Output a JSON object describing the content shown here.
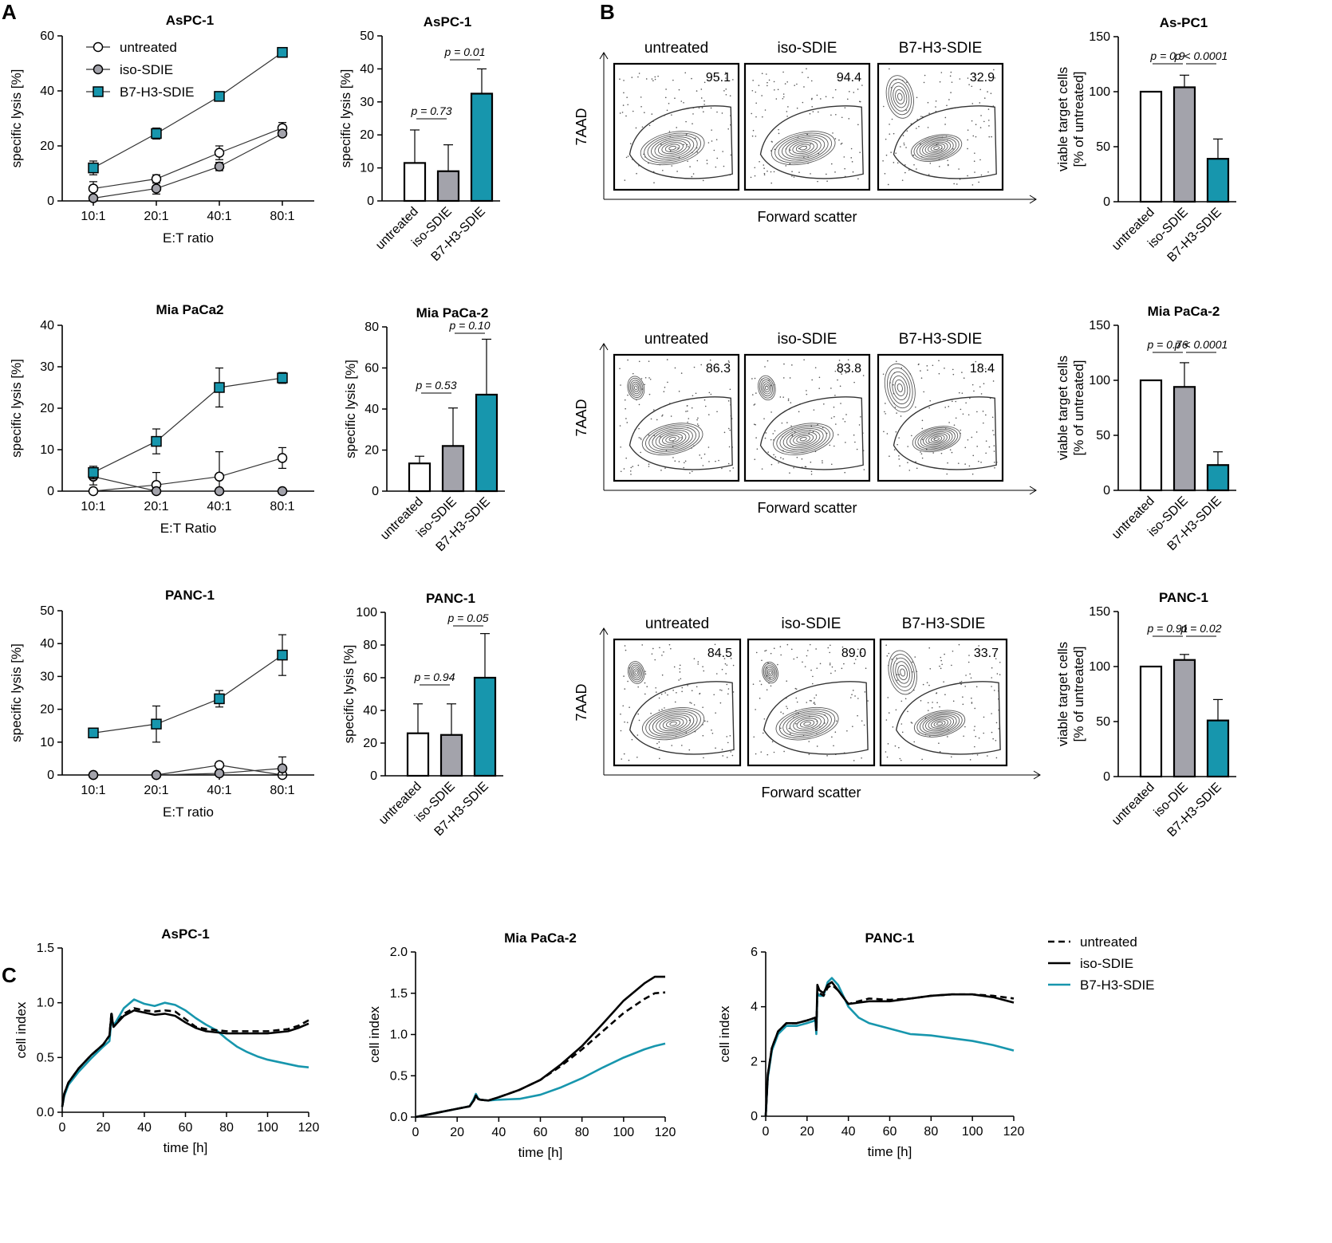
{
  "colors": {
    "teal": "#1796ad",
    "gray": "#a3a3ab",
    "white": "#ffffff",
    "black": "#000000"
  },
  "panels": {
    "A": "A",
    "B": "B",
    "C": "C"
  },
  "chart_data": [
    {
      "id": "A-line-aspc1",
      "type": "line",
      "title": "AsPC-1",
      "xlabel": "E:T ratio",
      "ylabel": "specific lysis [%]",
      "categories": [
        "10:1",
        "20:1",
        "40:1",
        "80:1"
      ],
      "ylim": [
        0,
        60
      ],
      "yticks": [
        0,
        20,
        40,
        60
      ],
      "legend": [
        "untreated",
        "iso-SDIE",
        "B7-H3-SDIE"
      ],
      "series": [
        {
          "name": "untreated",
          "marker": "circle-open",
          "values": [
            4.5,
            8,
            17.5,
            26.5
          ],
          "err": [
            2.5,
            1.5,
            2.5,
            2
          ]
        },
        {
          "name": "iso-SDIE",
          "marker": "circle-gray",
          "values": [
            1,
            4.5,
            12.5,
            24.5
          ],
          "err": [
            1,
            2,
            1.5,
            1
          ]
        },
        {
          "name": "B7-H3-SDIE",
          "marker": "square-teal",
          "values": [
            12,
            24.5,
            38,
            54
          ],
          "err": [
            2.5,
            2,
            1,
            1
          ]
        }
      ]
    },
    {
      "id": "A-line-miapaca2",
      "type": "line",
      "title": "Mia PaCa2",
      "xlabel": "E:T Ratio",
      "ylabel": "specific lysis [%]",
      "categories": [
        "10:1",
        "20:1",
        "40:1",
        "80:1"
      ],
      "ylim": [
        0,
        40
      ],
      "yticks": [
        0,
        10,
        20,
        30,
        40
      ],
      "series": [
        {
          "name": "untreated",
          "marker": "circle-open",
          "values": [
            0,
            1.5,
            3.5,
            8
          ],
          "err": [
            0,
            3,
            6,
            2.5
          ]
        },
        {
          "name": "iso-SDIE",
          "marker": "circle-gray",
          "values": [
            3.5,
            0,
            0,
            0
          ],
          "err": [
            2,
            0,
            0,
            0
          ]
        },
        {
          "name": "B7-H3-SDIE",
          "marker": "square-teal",
          "values": [
            4.5,
            12,
            25,
            27.3
          ],
          "err": [
            1.5,
            3,
            4.7,
            1.3
          ]
        }
      ]
    },
    {
      "id": "A-line-panc1",
      "type": "line",
      "title": "PANC-1",
      "xlabel": "E:T ratio",
      "ylabel": "specific lysis [%]",
      "categories": [
        "10:1",
        "20:1",
        "40:1",
        "80:1"
      ],
      "ylim": [
        0,
        50
      ],
      "yticks": [
        0,
        10,
        20,
        30,
        40,
        50
      ],
      "series": [
        {
          "name": "untreated",
          "marker": "circle-open",
          "values": [
            0,
            0,
            3,
            0
          ],
          "err": [
            0,
            0,
            0.5,
            0
          ]
        },
        {
          "name": "iso-SDIE",
          "marker": "circle-gray",
          "values": [
            0,
            0,
            0.5,
            2
          ],
          "err": [
            0,
            0,
            0.3,
            3.5
          ]
        },
        {
          "name": "B7-H3-SDIE",
          "marker": "square-teal",
          "values": [
            12.8,
            15.5,
            23.2,
            36.5
          ],
          "err": [
            0.5,
            5.5,
            2.5,
            6.2
          ]
        }
      ]
    },
    {
      "id": "A-bar-aspc1",
      "type": "bar",
      "title": "AsPC-1",
      "ylabel": "specific lysis [%]",
      "categories": [
        "untreated",
        "iso-SDIE",
        "B7-H3-SDIE"
      ],
      "values": [
        11.5,
        9,
        32.5
      ],
      "err": [
        10,
        8,
        7.5
      ],
      "ylim": [
        0,
        50
      ],
      "yticks": [
        0,
        10,
        20,
        30,
        40,
        50
      ],
      "pvalues": [
        {
          "label": "p = 0.73",
          "from": 0,
          "to": 1
        },
        {
          "label": "p = 0.01",
          "from": 1,
          "to": 2
        }
      ]
    },
    {
      "id": "A-bar-miapaca2",
      "type": "bar",
      "title": "Mia PaCa-2",
      "ylabel": "specific lysis [%]",
      "categories": [
        "untreated",
        "iso-SDIE",
        "B7-H3-SDIE"
      ],
      "values": [
        13.5,
        22,
        47
      ],
      "err": [
        3.5,
        18.5,
        27
      ],
      "ylim": [
        0,
        80
      ],
      "yticks": [
        0,
        20,
        40,
        60,
        80
      ],
      "pvalues": [
        {
          "label": "p = 0.53",
          "from": 0,
          "to": 1
        },
        {
          "label": "p = 0.10",
          "from": 1,
          "to": 2
        }
      ]
    },
    {
      "id": "A-bar-panc1",
      "type": "bar",
      "title": "PANC-1",
      "ylabel": "specific lysis [%]",
      "categories": [
        "untreated",
        "iso-SDIE",
        "B7-H3-SDIE"
      ],
      "values": [
        26,
        25,
        60
      ],
      "err": [
        18,
        19,
        27
      ],
      "ylim": [
        0,
        100
      ],
      "yticks": [
        0,
        20,
        40,
        60,
        80,
        100
      ],
      "pvalues": [
        {
          "label": "p = 0.94",
          "from": 0,
          "to": 1
        },
        {
          "label": "p = 0.05",
          "from": 1,
          "to": 2
        }
      ]
    },
    {
      "id": "B-flow-aspc1",
      "type": "contour",
      "xlabel": "Forward scatter",
      "ylabel": "7AAD",
      "conditions": [
        "untreated",
        "iso-SDIE",
        "B7-H3-SDIE"
      ],
      "percent_in_gate": [
        "95.1",
        "94.4",
        "32.9"
      ]
    },
    {
      "id": "B-flow-miapaca2",
      "type": "contour",
      "xlabel": "Forward scatter",
      "ylabel": "7AAD",
      "conditions": [
        "untreated",
        "iso-SDIE",
        "B7-H3-SDIE"
      ],
      "percent_in_gate": [
        "86.3",
        "83.8",
        "18.4"
      ]
    },
    {
      "id": "B-flow-panc1",
      "type": "contour",
      "xlabel": "Forward scatter",
      "ylabel": "7AAD",
      "conditions": [
        "untreated",
        "iso-SDIE",
        "B7-H3-SDIE"
      ],
      "percent_in_gate": [
        "84.5",
        "89.0",
        "33.7"
      ]
    },
    {
      "id": "B-bar-aspc1",
      "type": "bar",
      "title": "As-PC1",
      "ylabel": "viable target cells",
      "ylabel2": "[% of untreated]",
      "categories": [
        "untreated",
        "iso-SDIE",
        "B7-H3-SDIE"
      ],
      "values": [
        100,
        104,
        39
      ],
      "err": [
        0,
        11,
        18
      ],
      "ylim": [
        0,
        150
      ],
      "yticks": [
        0,
        50,
        100,
        150
      ],
      "pvalues": [
        {
          "label": "p = 0.9",
          "from": 0,
          "to": 1
        },
        {
          "label": "p < 0.0001",
          "from": 1,
          "to": 2
        }
      ]
    },
    {
      "id": "B-bar-miapaca2",
      "type": "bar",
      "title": "Mia PaCa-2",
      "ylabel": "viable target cells",
      "ylabel2": "[% of untreated]",
      "categories": [
        "untreated",
        "iso-SDIE",
        "B7-H3-SDIE"
      ],
      "values": [
        100,
        94,
        23
      ],
      "err": [
        0,
        22,
        12
      ],
      "ylim": [
        0,
        150
      ],
      "yticks": [
        0,
        50,
        100,
        150
      ],
      "pvalues": [
        {
          "label": "p = 0.76",
          "from": 0,
          "to": 1
        },
        {
          "label": "p < 0.0001",
          "from": 1,
          "to": 2
        }
      ]
    },
    {
      "id": "B-bar-panc1",
      "type": "bar",
      "title": "PANC-1",
      "ylabel": "viable target cells",
      "ylabel2": "[% of untreated]",
      "categories": [
        "untreated",
        "iso-DIE",
        "B7-H3-SDIE"
      ],
      "values": [
        100,
        106,
        51
      ],
      "err": [
        0,
        5,
        19
      ],
      "ylim": [
        0,
        150
      ],
      "yticks": [
        0,
        50,
        100,
        150
      ],
      "pvalues": [
        {
          "label": "p = 0.91",
          "from": 0,
          "to": 1
        },
        {
          "label": "p = 0.02",
          "from": 1,
          "to": 2
        }
      ]
    },
    {
      "id": "C-ts-aspc1",
      "type": "line",
      "title": "AsPC-1",
      "xlabel": "time [h]",
      "ylabel": "cell index",
      "xlim": [
        0,
        120
      ],
      "xticks": [
        0,
        20,
        40,
        60,
        80,
        100,
        120
      ],
      "ylim": [
        0,
        1.5
      ],
      "yticks": [
        "0.0",
        "0.5",
        "1.0",
        "1.5"
      ],
      "series": [
        {
          "name": "untreated",
          "x": [
            0,
            1,
            3,
            8,
            14,
            20,
            23,
            24,
            24.5,
            25,
            26,
            30,
            35,
            40,
            45,
            50,
            55,
            60,
            65,
            70,
            75,
            80,
            90,
            100,
            110,
            115,
            120
          ],
          "y": [
            0.05,
            0.17,
            0.27,
            0.4,
            0.52,
            0.62,
            0.7,
            0.92,
            0.83,
            0.78,
            0.8,
            0.9,
            0.95,
            0.93,
            0.92,
            0.93,
            0.92,
            0.85,
            0.78,
            0.76,
            0.75,
            0.74,
            0.74,
            0.74,
            0.76,
            0.79,
            0.84
          ]
        },
        {
          "name": "iso-SDIE",
          "x": [
            0,
            1,
            3,
            8,
            14,
            20,
            23,
            24,
            24.5,
            25,
            26,
            30,
            35,
            40,
            45,
            50,
            55,
            60,
            65,
            70,
            75,
            80,
            90,
            100,
            110,
            115,
            120
          ],
          "y": [
            0.05,
            0.17,
            0.27,
            0.4,
            0.52,
            0.62,
            0.7,
            0.9,
            0.83,
            0.78,
            0.8,
            0.88,
            0.93,
            0.91,
            0.89,
            0.9,
            0.88,
            0.82,
            0.77,
            0.74,
            0.73,
            0.72,
            0.72,
            0.72,
            0.74,
            0.77,
            0.81
          ]
        },
        {
          "name": "B7-H3-SDIE",
          "x": [
            0,
            1,
            3,
            8,
            14,
            20,
            23,
            24,
            25,
            26,
            30,
            35,
            40,
            45,
            50,
            55,
            60,
            65,
            70,
            75,
            80,
            85,
            90,
            95,
            100,
            110,
            115,
            120
          ],
          "y": [
            0.05,
            0.15,
            0.25,
            0.37,
            0.49,
            0.6,
            0.65,
            0.85,
            0.8,
            0.82,
            0.95,
            1.03,
            0.99,
            0.97,
            1.0,
            0.98,
            0.93,
            0.86,
            0.8,
            0.75,
            0.67,
            0.6,
            0.55,
            0.51,
            0.48,
            0.44,
            0.42,
            0.41
          ]
        }
      ]
    },
    {
      "id": "C-ts-miapaca2",
      "type": "line",
      "title": "Mia PaCa-2",
      "xlabel": "time [h]",
      "ylabel": "cell index",
      "xlim": [
        0,
        120
      ],
      "xticks": [
        0,
        20,
        40,
        60,
        80,
        100,
        120
      ],
      "ylim": [
        0,
        2.0
      ],
      "yticks": [
        "0.0",
        "0.5",
        "1.0",
        "1.5",
        "2.0"
      ],
      "series": [
        {
          "name": "untreated",
          "x": [
            0,
            10,
            20,
            26,
            28,
            29,
            30,
            31,
            35,
            40,
            50,
            60,
            70,
            80,
            90,
            100,
            110,
            115,
            120
          ],
          "y": [
            0,
            0.05,
            0.1,
            0.13,
            0.2,
            0.26,
            0.22,
            0.21,
            0.2,
            0.24,
            0.33,
            0.45,
            0.62,
            0.82,
            1.04,
            1.26,
            1.43,
            1.5,
            1.51
          ]
        },
        {
          "name": "iso-SDIE",
          "x": [
            0,
            10,
            20,
            26,
            28,
            29,
            30,
            31,
            35,
            40,
            50,
            60,
            70,
            80,
            90,
            100,
            110,
            115,
            120
          ],
          "y": [
            0,
            0.05,
            0.1,
            0.13,
            0.2,
            0.26,
            0.22,
            0.21,
            0.2,
            0.24,
            0.33,
            0.45,
            0.64,
            0.86,
            1.13,
            1.41,
            1.62,
            1.7,
            1.7
          ]
        },
        {
          "name": "B7-H3-SDIE",
          "x": [
            0,
            10,
            20,
            26,
            28,
            29,
            30,
            31,
            35,
            40,
            50,
            60,
            70,
            80,
            90,
            100,
            110,
            115,
            120
          ],
          "y": [
            0,
            0.05,
            0.1,
            0.13,
            0.22,
            0.28,
            0.23,
            0.21,
            0.2,
            0.21,
            0.22,
            0.27,
            0.36,
            0.47,
            0.6,
            0.72,
            0.82,
            0.86,
            0.89
          ]
        }
      ]
    },
    {
      "id": "C-ts-panc1",
      "type": "line",
      "title": "PANC-1",
      "xlabel": "time [h]",
      "ylabel": "cell index",
      "xlim": [
        0,
        120
      ],
      "xticks": [
        0,
        20,
        40,
        60,
        80,
        100,
        120
      ],
      "ylim": [
        0,
        6
      ],
      "yticks": [
        "0",
        "2",
        "4",
        "6"
      ],
      "series": [
        {
          "name": "untreated",
          "x": [
            0,
            1,
            3,
            6,
            10,
            15,
            20,
            24,
            24.5,
            25,
            26,
            28,
            30,
            32,
            35,
            40,
            45,
            50,
            60,
            70,
            80,
            90,
            100,
            110,
            120
          ],
          "y": [
            0,
            1.5,
            2.5,
            3.1,
            3.4,
            3.4,
            3.5,
            3.6,
            3.1,
            4.6,
            4.5,
            4.4,
            4.7,
            4.8,
            4.6,
            4.1,
            4.2,
            4.3,
            4.25,
            4.3,
            4.4,
            4.45,
            4.45,
            4.4,
            4.3
          ]
        },
        {
          "name": "iso-SDIE",
          "x": [
            0,
            1,
            3,
            6,
            10,
            15,
            20,
            24,
            24.5,
            25,
            26,
            28,
            30,
            32,
            35,
            40,
            45,
            50,
            60,
            70,
            80,
            90,
            100,
            110,
            120
          ],
          "y": [
            0,
            1.5,
            2.5,
            3.1,
            3.4,
            3.4,
            3.5,
            3.6,
            3.2,
            4.8,
            4.6,
            4.5,
            4.8,
            4.9,
            4.6,
            4.1,
            4.15,
            4.2,
            4.2,
            4.3,
            4.4,
            4.45,
            4.45,
            4.35,
            4.15
          ]
        },
        {
          "name": "B7-H3-SDIE",
          "x": [
            0,
            1,
            3,
            6,
            10,
            15,
            20,
            24,
            24.5,
            25,
            26,
            28,
            30,
            32,
            35,
            40,
            45,
            50,
            60,
            70,
            80,
            90,
            100,
            110,
            120
          ],
          "y": [
            0,
            1.4,
            2.4,
            3.0,
            3.3,
            3.3,
            3.4,
            3.5,
            3.0,
            4.5,
            4.4,
            4.4,
            4.9,
            5.05,
            4.8,
            4.0,
            3.6,
            3.4,
            3.2,
            3.0,
            2.95,
            2.85,
            2.75,
            2.6,
            2.4
          ]
        }
      ]
    }
  ],
  "legend_c": [
    "untreated",
    "iso-SDIE",
    "B7-H3-SDIE"
  ]
}
